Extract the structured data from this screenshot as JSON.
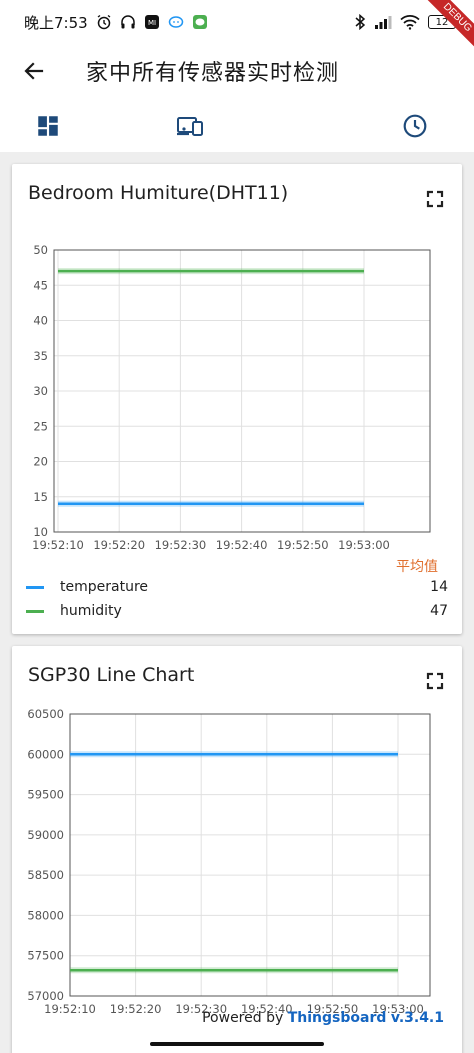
{
  "status_bar": {
    "time": "晚上7:53",
    "battery": "12"
  },
  "debug_banner": "DEBUG",
  "app_bar": {
    "title": "家中所有传感器实时检测"
  },
  "toolbar": {
    "icons": [
      "dashboard-icon",
      "devices-icon",
      "history-icon"
    ]
  },
  "colors": {
    "series_blue": "#2196f3",
    "series_green": "#4caf50",
    "legend_header": "#e06f2e",
    "brand_blue": "#1565c0"
  },
  "cards": [
    {
      "title": "Bedroom Humiture(DHT11)",
      "legend_header": "平均值",
      "legend": [
        {
          "name": "temperature",
          "value": "14"
        },
        {
          "name": "humidity",
          "value": "47"
        }
      ]
    },
    {
      "title": "SGP30 Line Chart"
    }
  ],
  "chart_data": [
    {
      "type": "line",
      "title": "Bedroom Humiture(DHT11)",
      "x": [
        "19:52:10",
        "19:53:00"
      ],
      "x_ticks": [
        "19:52:10",
        "19:52:20",
        "19:52:30",
        "19:52:40",
        "19:52:50",
        "19:53:00"
      ],
      "ylim": [
        10,
        50
      ],
      "y_ticks": [
        10,
        15,
        20,
        25,
        30,
        35,
        40,
        45,
        50
      ],
      "grid": true,
      "series": [
        {
          "name": "temperature",
          "color": "#2196f3",
          "values": [
            14,
            14
          ]
        },
        {
          "name": "humidity",
          "color": "#4caf50",
          "values": [
            47,
            47
          ]
        }
      ]
    },
    {
      "type": "line",
      "title": "SGP30 Line Chart",
      "x": [
        "19:52:10",
        "19:53:00"
      ],
      "x_ticks": [
        "19:52:10",
        "19:52:20",
        "19:52:30",
        "19:52:40",
        "19:52:50",
        "19:53:00"
      ],
      "ylim": [
        57000,
        60500
      ],
      "y_ticks": [
        57000,
        57500,
        58000,
        58500,
        59000,
        59500,
        60000,
        60500
      ],
      "grid": true,
      "series": [
        {
          "color": "#2196f3",
          "values": [
            60000,
            60000
          ]
        },
        {
          "color": "#4caf50",
          "values": [
            57320,
            57320
          ]
        }
      ]
    }
  ],
  "footer": {
    "powered_by": "Powered by",
    "brand": "Thingsboard",
    "version": "v.3.4.1"
  }
}
